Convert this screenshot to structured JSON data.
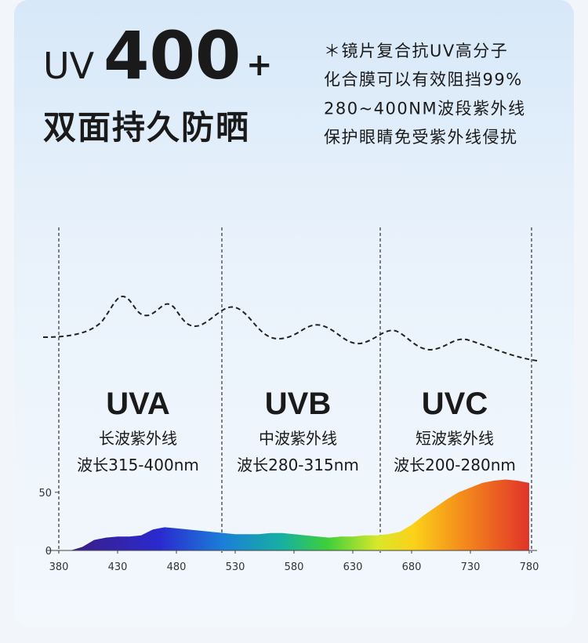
{
  "header": {
    "title_prefix": "UV",
    "title_number": "400",
    "title_suffix": "+",
    "subtitle": "双面持久防晒"
  },
  "notes": [
    "＊镜片复合抗UV高分子",
    "化合膜可以有效阻挡99%",
    "280~400NM波段紫外线",
    "保护眼睛免受紫外线侵扰"
  ],
  "bands": [
    {
      "name": "UVA",
      "label": "长波紫外线",
      "range": "波长315-400nm"
    },
    {
      "name": "UVB",
      "label": "中波紫外线",
      "range": "波长280-315nm"
    },
    {
      "name": "UVC",
      "label": "短波紫外线",
      "range": "波长200-280nm"
    }
  ],
  "chart_data": {
    "type": "area",
    "x": [
      380,
      390,
      400,
      410,
      420,
      430,
      440,
      450,
      460,
      470,
      480,
      490,
      500,
      510,
      520,
      530,
      540,
      550,
      560,
      570,
      580,
      590,
      600,
      610,
      620,
      630,
      640,
      650,
      660,
      670,
      680,
      690,
      700,
      710,
      720,
      730,
      740,
      750,
      760,
      770,
      780
    ],
    "values": [
      0,
      0,
      3,
      9,
      11,
      12,
      12,
      13,
      18,
      20,
      19,
      18,
      17,
      16,
      15,
      14,
      14,
      14,
      15,
      15,
      14,
      13,
      12,
      11,
      12,
      12,
      13,
      13,
      14,
      16,
      22,
      30,
      37,
      44,
      50,
      54,
      58,
      60,
      61,
      60,
      58
    ],
    "xlim": [
      380,
      780
    ],
    "ylim": [
      0,
      62
    ],
    "xticks": [
      380,
      430,
      480,
      530,
      580,
      630,
      680,
      730,
      780
    ],
    "yticks": [
      0,
      50
    ]
  }
}
